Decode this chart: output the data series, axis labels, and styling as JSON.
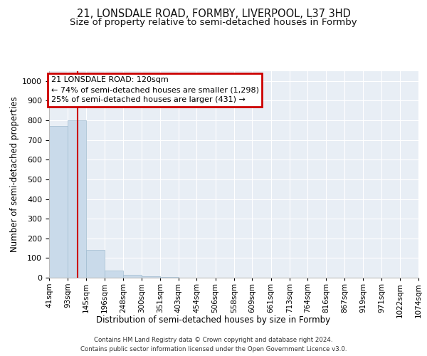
{
  "title_line1": "21, LONSDALE ROAD, FORMBY, LIVERPOOL, L37 3HD",
  "title_line2": "Size of property relative to semi-detached houses in Formby",
  "xlabel": "Distribution of semi-detached houses by size in Formby",
  "ylabel": "Number of semi-detached properties",
  "footer_line1": "Contains HM Land Registry data © Crown copyright and database right 2024.",
  "footer_line2": "Contains public sector information licensed under the Open Government Licence v3.0.",
  "annotation_title": "21 LONSDALE ROAD: 120sqm",
  "annotation_line1": "← 74% of semi-detached houses are smaller (1,298)",
  "annotation_line2": "25% of semi-detached houses are larger (431) →",
  "property_size": 120,
  "bar_edges": [
    41,
    93,
    145,
    196,
    248,
    300,
    351,
    403,
    454,
    506,
    558,
    609,
    661,
    713,
    764,
    816,
    867,
    919,
    971,
    1022,
    1074
  ],
  "bar_heights": [
    770,
    800,
    140,
    35,
    14,
    8,
    3,
    0,
    0,
    0,
    0,
    0,
    0,
    0,
    0,
    0,
    0,
    0,
    0,
    0
  ],
  "bar_color": "#c9daea",
  "bar_edge_color": "#a0bcd0",
  "highlight_line_color": "#cc0000",
  "annotation_box_color": "#cc0000",
  "background_color": "#e8eef5",
  "ylim": [
    0,
    1050
  ],
  "yticks": [
    0,
    100,
    200,
    300,
    400,
    500,
    600,
    700,
    800,
    900,
    1000
  ],
  "grid_color": "#ffffff",
  "title_fontsize": 10.5,
  "subtitle_fontsize": 9.5,
  "ylabel_fontsize": 8.5,
  "xlabel_fontsize": 8.5,
  "tick_fontsize": 8,
  "xtick_fontsize": 7.5,
  "annotation_fontsize": 8,
  "footer_fontsize": 6.2
}
